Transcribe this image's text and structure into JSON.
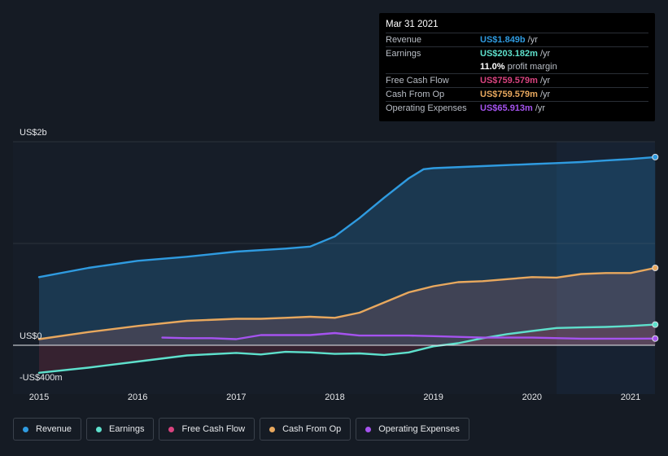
{
  "tooltip": {
    "date": "Mar 31 2021",
    "rows": [
      {
        "name": "Revenue",
        "value": "US$1.849b",
        "unit": "/yr",
        "color": "#2f9be0"
      },
      {
        "name": "Earnings",
        "value": "US$203.182m",
        "unit": "/yr",
        "color": "#5ee0cc"
      },
      {
        "name": "Free Cash Flow",
        "value": "US$759.579m",
        "unit": "/yr",
        "color": "#d9437f"
      },
      {
        "name": "Cash From Op",
        "value": "US$759.579m",
        "unit": "/yr",
        "color": "#e8a85e"
      },
      {
        "name": "Operating Expenses",
        "value": "US$65.913m",
        "unit": "/yr",
        "color": "#a553ef"
      }
    ],
    "margin_value": "11.0%",
    "margin_label": "profit margin"
  },
  "legend": [
    {
      "label": "Revenue",
      "color": "#2f9be0"
    },
    {
      "label": "Earnings",
      "color": "#5ee0cc"
    },
    {
      "label": "Free Cash Flow",
      "color": "#d9437f"
    },
    {
      "label": "Cash From Op",
      "color": "#e8a85e"
    },
    {
      "label": "Operating Expenses",
      "color": "#a553ef"
    }
  ],
  "chart_data": {
    "type": "area",
    "y_axis_labels": [
      "US$2b",
      "US$0",
      "-US$400m"
    ],
    "y_unit": "US$m",
    "ylim": [
      -400,
      2000
    ],
    "xlim": [
      2015.0,
      2021.25
    ],
    "x_tick_labels": [
      "2015",
      "2016",
      "2017",
      "2018",
      "2019",
      "2020",
      "2021"
    ],
    "x_tick_values": [
      2015,
      2016,
      2017,
      2018,
      2019,
      2020,
      2021
    ],
    "highlight_start": 2020.25,
    "grid": true,
    "legend_position": "bottom-left",
    "series": [
      {
        "name": "Revenue",
        "color": "#2f9be0",
        "fill": true,
        "points": [
          [
            2015.0,
            670
          ],
          [
            2015.5,
            760
          ],
          [
            2016.0,
            830
          ],
          [
            2016.5,
            870
          ],
          [
            2017.0,
            920
          ],
          [
            2017.5,
            950
          ],
          [
            2017.75,
            970
          ],
          [
            2018.0,
            1070
          ],
          [
            2018.25,
            1250
          ],
          [
            2018.5,
            1450
          ],
          [
            2018.75,
            1640
          ],
          [
            2018.9,
            1730
          ],
          [
            2019.0,
            1740
          ],
          [
            2019.5,
            1760
          ],
          [
            2020.0,
            1780
          ],
          [
            2020.25,
            1790
          ],
          [
            2020.5,
            1800
          ],
          [
            2020.75,
            1815
          ],
          [
            2021.0,
            1830
          ],
          [
            2021.25,
            1849
          ]
        ]
      },
      {
        "name": "Earnings",
        "color": "#5ee0cc",
        "fill": true,
        "points": [
          [
            2015.0,
            -270
          ],
          [
            2015.5,
            -220
          ],
          [
            2016.0,
            -160
          ],
          [
            2016.5,
            -100
          ],
          [
            2017.0,
            -75
          ],
          [
            2017.25,
            -90
          ],
          [
            2017.5,
            -65
          ],
          [
            2017.75,
            -70
          ],
          [
            2018.0,
            -85
          ],
          [
            2018.25,
            -80
          ],
          [
            2018.5,
            -95
          ],
          [
            2018.75,
            -70
          ],
          [
            2019.0,
            -10
          ],
          [
            2019.25,
            20
          ],
          [
            2019.5,
            70
          ],
          [
            2019.75,
            110
          ],
          [
            2020.0,
            140
          ],
          [
            2020.25,
            170
          ],
          [
            2020.5,
            175
          ],
          [
            2020.75,
            180
          ],
          [
            2021.0,
            190
          ],
          [
            2021.25,
            203
          ]
        ]
      },
      {
        "name": "Free Cash Flow",
        "color": "#d9437f",
        "fill": false,
        "points": []
      },
      {
        "name": "Cash From Op",
        "color": "#e8a85e",
        "fill": true,
        "points": [
          [
            2015.0,
            60
          ],
          [
            2015.5,
            130
          ],
          [
            2016.0,
            190
          ],
          [
            2016.5,
            240
          ],
          [
            2017.0,
            260
          ],
          [
            2017.25,
            260
          ],
          [
            2017.5,
            270
          ],
          [
            2017.75,
            280
          ],
          [
            2018.0,
            270
          ],
          [
            2018.25,
            320
          ],
          [
            2018.5,
            420
          ],
          [
            2018.75,
            520
          ],
          [
            2019.0,
            580
          ],
          [
            2019.25,
            620
          ],
          [
            2019.5,
            630
          ],
          [
            2019.75,
            650
          ],
          [
            2020.0,
            670
          ],
          [
            2020.25,
            665
          ],
          [
            2020.5,
            700
          ],
          [
            2020.75,
            710
          ],
          [
            2021.0,
            710
          ],
          [
            2021.25,
            760
          ]
        ]
      },
      {
        "name": "Operating Expenses",
        "color": "#a553ef",
        "fill": false,
        "points": [
          [
            2016.25,
            75
          ],
          [
            2016.5,
            70
          ],
          [
            2016.75,
            70
          ],
          [
            2017.0,
            60
          ],
          [
            2017.25,
            100
          ],
          [
            2017.5,
            100
          ],
          [
            2017.75,
            100
          ],
          [
            2018.0,
            120
          ],
          [
            2018.25,
            95
          ],
          [
            2018.5,
            95
          ],
          [
            2018.75,
            95
          ],
          [
            2019.0,
            90
          ],
          [
            2019.5,
            75
          ],
          [
            2020.0,
            75
          ],
          [
            2020.5,
            65
          ],
          [
            2021.0,
            65
          ],
          [
            2021.25,
            66
          ]
        ]
      }
    ]
  }
}
